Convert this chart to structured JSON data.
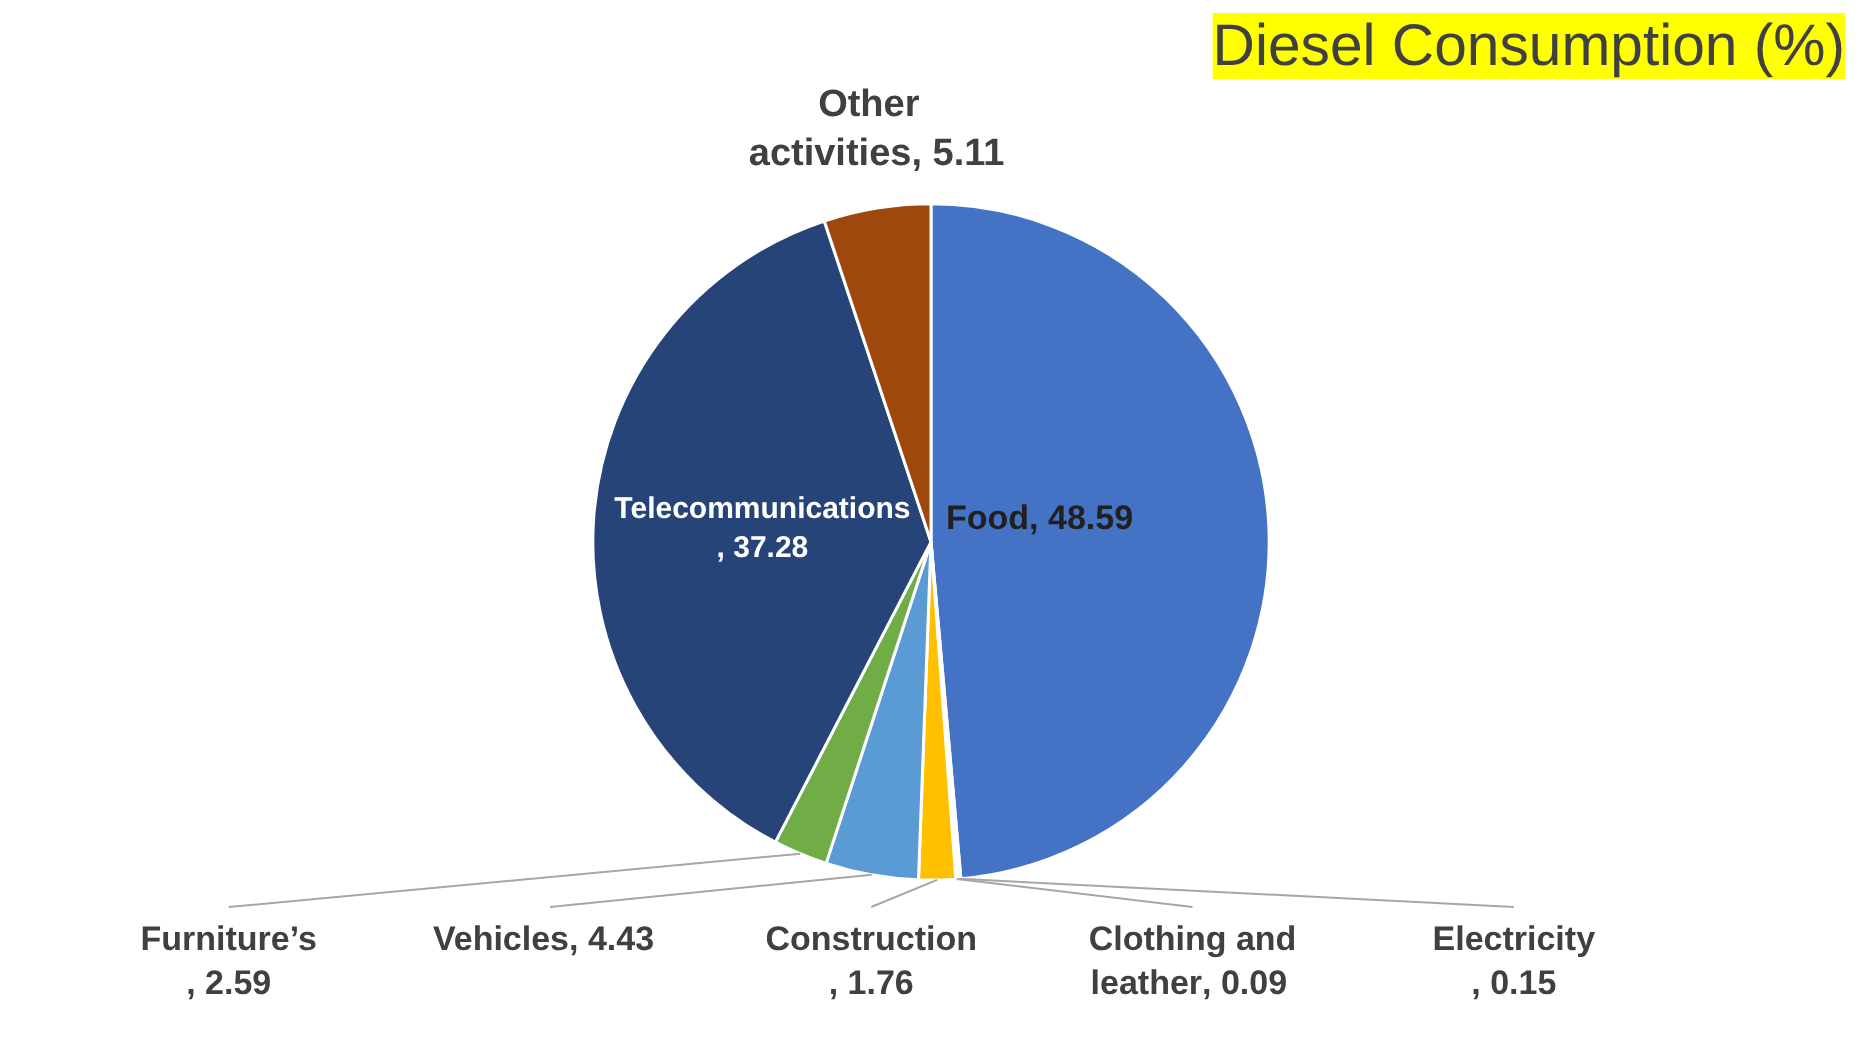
{
  "chart_data": {
    "type": "pie",
    "title": "Diesel Consumption (%)",
    "categories": [
      "Food",
      "Electricity",
      "Clothing and leather",
      "Construction",
      "Vehicles",
      "Furniture’s",
      "Telecommunications",
      "Other activities"
    ],
    "values": [
      48.59,
      0.15,
      0.09,
      1.76,
      4.43,
      2.59,
      37.28,
      5.11
    ],
    "value_labels": [
      ", 48.59",
      ", 0.15",
      ", 0.09",
      ", 1.76",
      ", 4.43",
      ", 2.59",
      ", 37.28",
      ", 5.11"
    ],
    "colors": [
      "#4472c4",
      "#a5a5a5",
      "#ed7d31",
      "#ffc000",
      "#5b9bd5",
      "#70ad47",
      "#264478",
      "#9e480e"
    ]
  }
}
